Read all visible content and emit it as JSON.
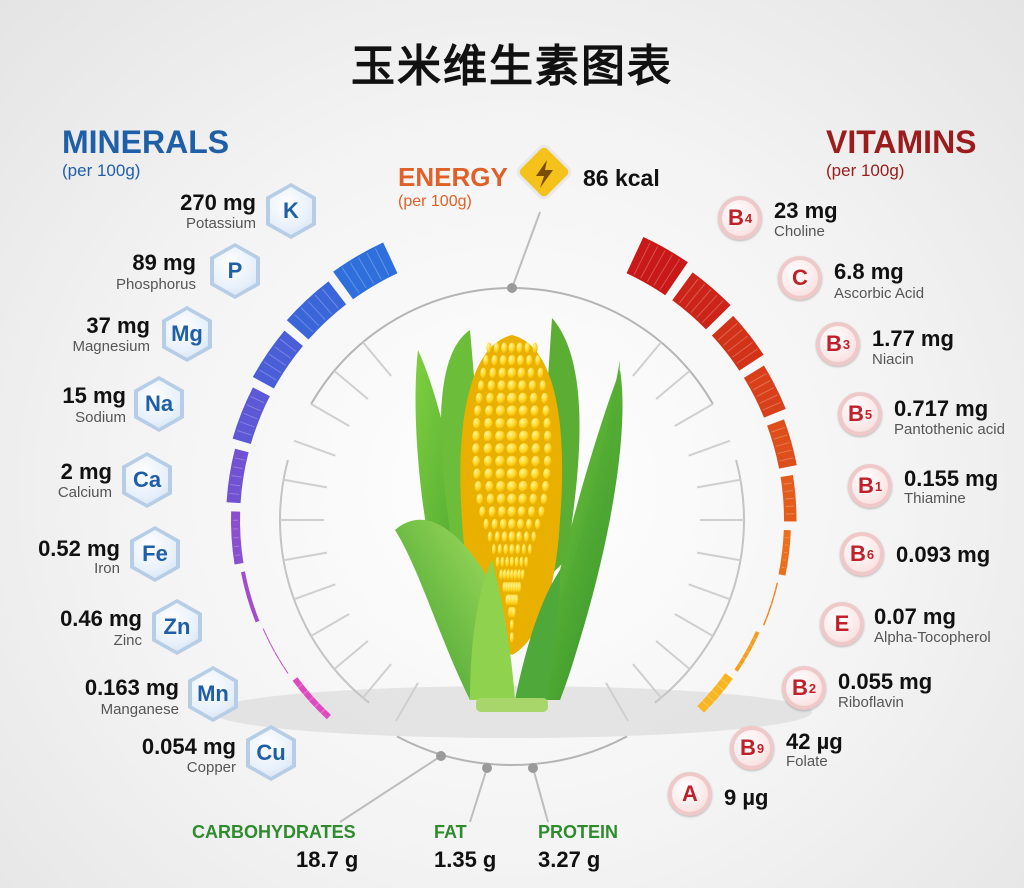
{
  "title": "玉米维生素图表",
  "minerals": {
    "heading": "MINERALS",
    "subheading": "(per 100g)",
    "items": [
      {
        "symbol": "K",
        "amount": "270 mg",
        "name": "Potassium"
      },
      {
        "symbol": "P",
        "amount": "89 mg",
        "name": "Phosphorus"
      },
      {
        "symbol": "Mg",
        "amount": "37 mg",
        "name": "Magnesium"
      },
      {
        "symbol": "Na",
        "amount": "15 mg",
        "name": "Sodium"
      },
      {
        "symbol": "Ca",
        "amount": "2 mg",
        "name": "Calcium"
      },
      {
        "symbol": "Fe",
        "amount": "0.52 mg",
        "name": "Iron"
      },
      {
        "symbol": "Zn",
        "amount": "0.46 mg",
        "name": "Zinc"
      },
      {
        "symbol": "Mn",
        "amount": "0.163 mg",
        "name": "Manganese"
      },
      {
        "symbol": "Cu",
        "amount": "0.054 mg",
        "name": "Copper"
      }
    ]
  },
  "vitamins": {
    "heading": "VITAMINS",
    "subheading": "(per 100g)",
    "items": [
      {
        "letter": "B",
        "sub": "4",
        "amount": "23 mg",
        "name": "Choline"
      },
      {
        "letter": "C",
        "sub": "",
        "amount": "6.8 mg",
        "name": "Ascorbic Acid"
      },
      {
        "letter": "B",
        "sub": "3",
        "amount": "1.77 mg",
        "name": "Niacin"
      },
      {
        "letter": "B",
        "sub": "5",
        "amount": "0.717 mg",
        "name": "Pantothenic acid"
      },
      {
        "letter": "B",
        "sub": "1",
        "amount": "0.155 mg",
        "name": "Thiamine"
      },
      {
        "letter": "B",
        "sub": "6",
        "amount": "0.093 mg",
        "name": ""
      },
      {
        "letter": "E",
        "sub": "",
        "amount": "0.07 mg",
        "name": "Alpha-Tocopherol"
      },
      {
        "letter": "B",
        "sub": "2",
        "amount": "0.055 mg",
        "name": "Riboflavin"
      },
      {
        "letter": "B",
        "sub": "9",
        "amount": "42 µg",
        "name": "Folate"
      },
      {
        "letter": "A",
        "sub": "",
        "amount": "9 µg",
        "name": ""
      }
    ]
  },
  "energy": {
    "label": "ENERGY",
    "sub": "(per 100g)",
    "value": "86 kcal"
  },
  "macros": [
    {
      "label": "CARBOHYDRATES",
      "value": "18.7 g"
    },
    {
      "label": "FAT",
      "value": "1.35 g"
    },
    {
      "label": "PROTEIN",
      "value": "3.27 g"
    }
  ],
  "colors": {
    "minerals_heading": "#1f5fa8",
    "vitamins_heading": "#9b1c1c",
    "energy_label": "#e0602a",
    "macro_label": "#2e8b2e",
    "mineral_arc": [
      "#2f6fdc",
      "#3a66da",
      "#4a5ed8",
      "#5c58d6",
      "#7052d2",
      "#8a4ed0",
      "#a34cce",
      "#c24ac8",
      "#e04ac0"
    ],
    "vitamin_arc": [
      "#c81818",
      "#cc2418",
      "#d23218",
      "#d8401a",
      "#de4e1a",
      "#e45c1c",
      "#ea6e1c",
      "#f0841e",
      "#f59e20",
      "#f8b622"
    ]
  },
  "icons": {
    "energy": "lightning-bolt-icon",
    "illustration": "corn-cob-icon"
  }
}
